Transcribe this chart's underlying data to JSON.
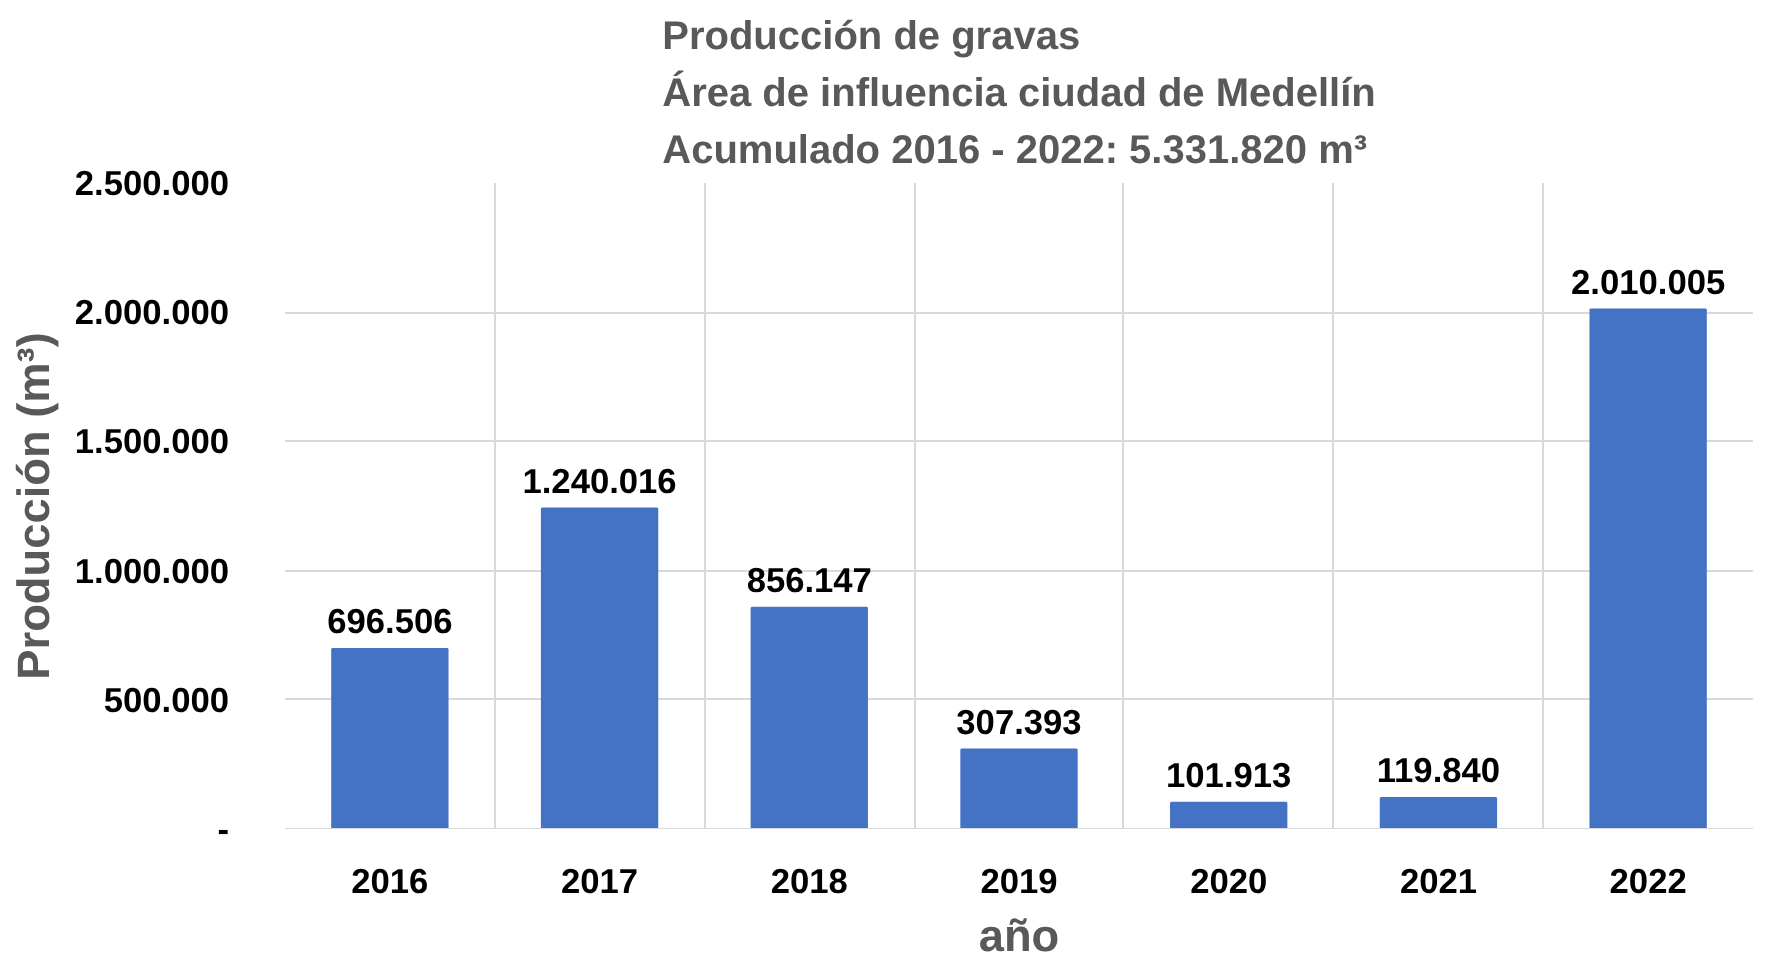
{
  "chart_data": {
    "type": "bar",
    "title": "Producción de gravas\nÁrea de influencia ciudad de Medellín\nAcumulado 2016 - 2022: 5.331.820 m³",
    "xlabel": "año",
    "ylabel": "Producción (m³)",
    "categories": [
      "2016",
      "2017",
      "2018",
      "2019",
      "2020",
      "2021",
      "2022"
    ],
    "values": [
      696506,
      1240016,
      856147,
      307393,
      101913,
      119840,
      2010005
    ],
    "value_labels": [
      "696.506",
      "1.240.016",
      "856.147",
      "307.393",
      "101.913",
      "119.840",
      "2.010.005"
    ],
    "color": "#4472c4",
    "ylim": [
      0,
      2500000
    ],
    "yticks": [
      {
        "value": 0,
        "label": "-"
      },
      {
        "value": 500000,
        "label": "500.000"
      },
      {
        "value": 1000000,
        "label": "1.000.000"
      },
      {
        "value": 1500000,
        "label": "1.500.000"
      },
      {
        "value": 2000000,
        "label": "2.000.000"
      },
      {
        "value": 2500000,
        "label": "2.500.000"
      }
    ],
    "grid": true
  }
}
